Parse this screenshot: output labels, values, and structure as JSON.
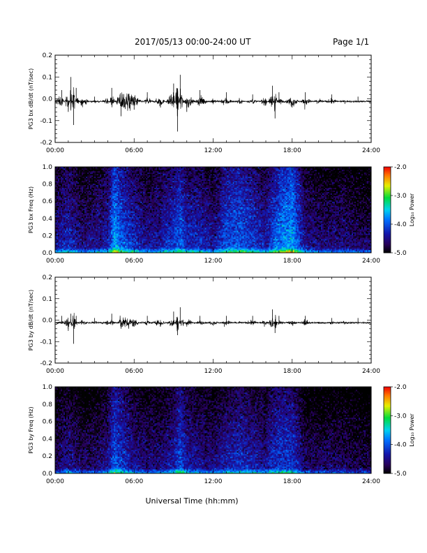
{
  "header": {
    "title": "2017/05/13  00:00-24:00 UT",
    "page": "Page 1/1"
  },
  "x_axis_title": "Universal Time (hh:mm)",
  "colorbar": {
    "label": "Log₁₀ Power",
    "ticks": [
      "-2.0",
      "-3.0",
      "-4.0",
      "-5.0"
    ],
    "range": [
      -5.0,
      -2.0
    ]
  },
  "chart_data": [
    {
      "type": "line",
      "ylabel": "PG3 bx dB/dt (nT/sec)",
      "xlim": [
        0,
        24
      ],
      "ylim": [
        -0.2,
        0.2
      ],
      "x_ticks": [
        "00:00",
        "06:00",
        "12:00",
        "18:00",
        "24:00"
      ],
      "y_ticks": [
        "0.2",
        "0.1",
        "0.0",
        "-0.1",
        "-0.2"
      ],
      "series": [
        {
          "x": [
            0,
            0.5,
            1.0,
            1.2,
            1.4,
            1.6,
            2.0,
            3.0,
            4.0,
            4.3,
            5.0,
            6.0,
            7.0,
            8.0,
            9.0,
            9.3,
            9.5,
            10.0,
            11.0,
            12.0,
            13.0,
            14.0,
            15.0,
            16.0,
            16.5,
            16.7,
            17.0,
            18.0,
            19.0,
            20.0,
            21.0,
            22.0,
            23.0,
            24.0
          ],
          "y": [
            0.02,
            0.04,
            -0.06,
            0.1,
            -0.12,
            0.05,
            -0.03,
            0.01,
            -0.02,
            0.05,
            -0.08,
            -0.05,
            0.03,
            -0.04,
            0.07,
            -0.15,
            0.11,
            -0.06,
            0.04,
            -0.02,
            0.03,
            -0.02,
            0.02,
            -0.03,
            0.06,
            -0.09,
            0.03,
            -0.04,
            0.03,
            -0.02,
            0.02,
            -0.01,
            0.01,
            -0.01
          ]
        }
      ]
    },
    {
      "type": "heatmap",
      "ylabel": "PG3 bx Freq (Hz)",
      "xlim": [
        0,
        24
      ],
      "ylim": [
        0.0,
        1.0
      ],
      "x_ticks": [
        "00:00",
        "06:00",
        "12:00",
        "18:00",
        "24:00"
      ],
      "y_ticks": [
        "1.0",
        "0.8",
        "0.6",
        "0.4",
        "0.2",
        "0.0"
      ],
      "activity_profile": {
        "hours": [
          0,
          1,
          2,
          3,
          4,
          4.5,
          5,
          6,
          7,
          8,
          9,
          9.5,
          10,
          11,
          12,
          13,
          14,
          15,
          16,
          16.5,
          17,
          18,
          19,
          20,
          21,
          22,
          23,
          24
        ],
        "log_power": [
          -4.4,
          -4.2,
          -4.5,
          -4.4,
          -4.3,
          -3.6,
          -3.9,
          -4.2,
          -4.4,
          -4.3,
          -4.1,
          -3.9,
          -4.2,
          -4.2,
          -4.4,
          -4.0,
          -3.9,
          -4.1,
          -4.3,
          -4.0,
          -3.8,
          -3.6,
          -4.4,
          -4.5,
          -4.5,
          -4.5,
          -4.6,
          -4.6
        ]
      }
    },
    {
      "type": "line",
      "ylabel": "PG3 by dB/dt (nT/sec)",
      "xlim": [
        0,
        24
      ],
      "ylim": [
        -0.2,
        0.2
      ],
      "x_ticks": [
        "00:00",
        "06:00",
        "12:00",
        "18:00",
        "24:00"
      ],
      "y_ticks": [
        "0.2",
        "0.1",
        "0.0",
        "-0.1",
        "-0.2"
      ],
      "series": [
        {
          "x": [
            0,
            0.5,
            1.0,
            1.2,
            1.4,
            1.6,
            2.0,
            3.0,
            4.0,
            4.3,
            5.0,
            6.0,
            7.0,
            8.0,
            9.0,
            9.3,
            9.5,
            10.0,
            11.0,
            12.0,
            13.0,
            14.0,
            15.0,
            16.0,
            16.5,
            16.7,
            17.0,
            18.0,
            19.0,
            20.0,
            21.0,
            22.0,
            23.0,
            24.0
          ],
          "y": [
            0.0,
            0.02,
            -0.05,
            0.03,
            -0.11,
            0.02,
            -0.02,
            0.01,
            -0.02,
            0.03,
            -0.04,
            -0.03,
            0.02,
            -0.03,
            0.04,
            -0.07,
            0.06,
            -0.03,
            0.02,
            -0.02,
            0.02,
            -0.01,
            0.02,
            -0.02,
            0.05,
            -0.06,
            0.02,
            -0.02,
            0.02,
            -0.01,
            0.01,
            -0.01,
            0.01,
            -0.01
          ]
        }
      ]
    },
    {
      "type": "heatmap",
      "ylabel": "PG3 by Freq (Hz)",
      "xlim": [
        0,
        24
      ],
      "ylim": [
        0.0,
        1.0
      ],
      "x_ticks": [
        "00:00",
        "06:00",
        "12:00",
        "18:00",
        "24:00"
      ],
      "y_ticks": [
        "1.0",
        "0.8",
        "0.6",
        "0.4",
        "0.2",
        "0.0"
      ],
      "activity_profile": {
        "hours": [
          0,
          1,
          2,
          3,
          4,
          4.5,
          5,
          6,
          7,
          8,
          9,
          9.5,
          10,
          11,
          12,
          13,
          14,
          15,
          16,
          16.5,
          17,
          18,
          19,
          20,
          21,
          22,
          23,
          24
        ],
        "log_power": [
          -4.6,
          -4.4,
          -4.6,
          -4.6,
          -4.4,
          -3.9,
          -4.1,
          -4.4,
          -4.5,
          -4.5,
          -4.3,
          -4.0,
          -4.3,
          -4.4,
          -4.5,
          -4.3,
          -4.2,
          -4.3,
          -4.4,
          -4.2,
          -4.1,
          -4.1,
          -4.6,
          -4.6,
          -4.6,
          -4.6,
          -4.7,
          -4.7
        ]
      }
    }
  ]
}
